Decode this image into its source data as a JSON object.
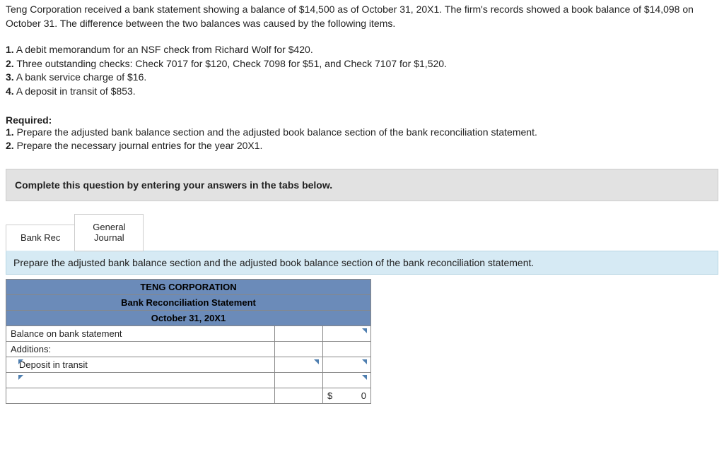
{
  "problem": {
    "intro": "Teng Corporation received a bank statement showing a balance of $14,500 as of October 31, 20X1. The firm's records showed a book balance of $14,098 on October 31. The difference between the two balances was caused by the following items.",
    "items": [
      {
        "n": "1.",
        "t": "A debit memorandum for an NSF check from Richard Wolf for $420."
      },
      {
        "n": "2.",
        "t": "Three outstanding checks: Check 7017 for $120, Check 7098 for $51, and Check 7107 for $1,520."
      },
      {
        "n": "3.",
        "t": "A bank service charge of $16."
      },
      {
        "n": "4.",
        "t": "A deposit in transit of $853."
      }
    ],
    "required_label": "Required:",
    "required": [
      {
        "n": "1.",
        "t": "Prepare the adjusted bank balance section and the adjusted book balance section of the bank reconciliation statement."
      },
      {
        "n": "2.",
        "t": "Prepare the necessary journal entries for the year 20X1."
      }
    ]
  },
  "instruction_bar": "Complete this question by entering your answers in the tabs below.",
  "tabs": {
    "t1": "Bank Rec",
    "t2_l1": "General",
    "t2_l2": "Journal"
  },
  "prompt": "Prepare the adjusted bank balance section and the adjusted book balance section of the bank reconciliation statement.",
  "worksheet": {
    "header1": "TENG CORPORATION",
    "header2": "Bank Reconciliation Statement",
    "header3": "October 31, 20X1",
    "rows": {
      "r1_label": "Balance on bank statement",
      "r2_label": "Additions:",
      "r3_label": "Deposit in transit",
      "r5_dollar": "$",
      "r5_val": "0"
    }
  }
}
